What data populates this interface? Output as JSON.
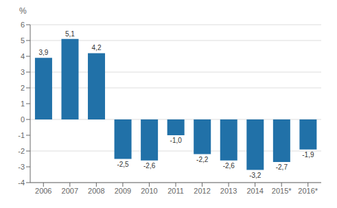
{
  "chart_data": {
    "type": "bar",
    "ylabel": "%",
    "categories": [
      "2006",
      "2007",
      "2008",
      "2009",
      "2010",
      "2011",
      "2012",
      "2013",
      "2014",
      "2015*",
      "2016*"
    ],
    "values": [
      3.9,
      5.1,
      4.2,
      -2.5,
      -2.6,
      -1.0,
      -2.2,
      -2.6,
      -3.2,
      -2.7,
      -1.9
    ],
    "value_labels": [
      "3,9",
      "5,1",
      "4,2",
      "-2,5",
      "-2,6",
      "-1,0",
      "-2,2",
      "-2,6",
      "-3,2",
      "-2,7",
      "-1,9"
    ],
    "data_labels": true,
    "color": "#2171a8",
    "ylim": [
      -4,
      6
    ],
    "yticks": [
      -4,
      -3,
      -2,
      -1,
      0,
      1,
      2,
      3,
      4,
      5,
      6
    ],
    "grid": true
  }
}
